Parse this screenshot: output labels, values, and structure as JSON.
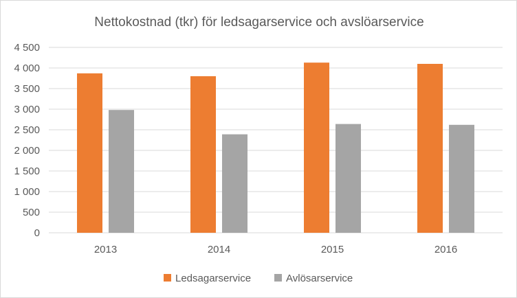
{
  "chart_data": {
    "type": "bar",
    "title": "Nettokostnad (tkr) för ledsagarservice och avslöarservice",
    "xlabel": "",
    "ylabel": "",
    "categories": [
      "2013",
      "2014",
      "2015",
      "2016"
    ],
    "series": [
      {
        "name": "Ledsagarservice",
        "color": "#ed7d31",
        "values": [
          3870,
          3800,
          4130,
          4100
        ]
      },
      {
        "name": "Avlösarservice",
        "color": "#a5a5a5",
        "values": [
          2980,
          2390,
          2640,
          2620
        ]
      }
    ],
    "ylim": [
      0,
      4500
    ],
    "yticks": [
      0,
      500,
      1000,
      1500,
      2000,
      2500,
      3000,
      3500,
      4000,
      4500
    ],
    "ytick_labels": [
      "0",
      "500",
      "1 000",
      "1 500",
      "2 000",
      "2 500",
      "3 000",
      "3 500",
      "4 000",
      "4 500"
    ],
    "grid": true,
    "legend_position": "bottom"
  }
}
